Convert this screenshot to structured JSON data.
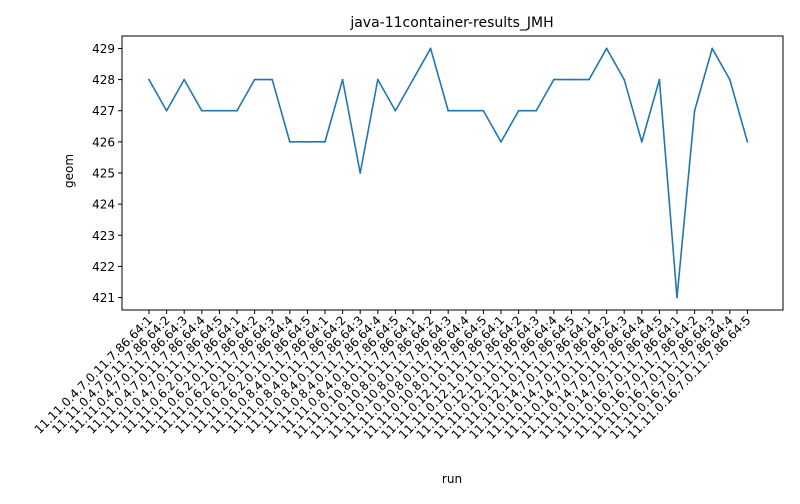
{
  "chart_data": {
    "type": "line",
    "title": "java-11container-results_JMH",
    "xlabel": "run",
    "ylabel": "geom",
    "ylim": [
      420.6,
      429.4
    ],
    "yticks": [
      421,
      422,
      423,
      424,
      425,
      426,
      427,
      428,
      429
    ],
    "grid": false,
    "categories": [
      "11.11.0.4.7.0.11.7.86.64:1",
      "11.11.0.4.7.0.11.7.86.64:2",
      "11.11.0.4.7.0.11.7.86.64:3",
      "11.11.0.4.7.0.11.7.86.64:4",
      "11.11.0.4.7.0.11.7.86.64:5",
      "11.11.0.6.2.0.11.7.86.64:1",
      "11.11.0.6.2.0.11.7.86.64:2",
      "11.11.0.6.2.0.11.7.86.64:3",
      "11.11.0.6.2.0.11.7.86.64:4",
      "11.11.0.6.2.0.11.7.86.64:5",
      "11.11.0.8.4.0.11.7.86.64:1",
      "11.11.0.8.4.0.11.7.86.64:2",
      "11.11.0.8.4.0.11.7.86.64:3",
      "11.11.0.8.4.0.11.7.86.64:4",
      "11.11.0.8.4.0.11.7.86.64:5",
      "11.11.0.10.8.0.11.7.86.64:1",
      "11.11.0.10.8.0.11.7.86.64:2",
      "11.11.0.10.8.0.11.7.86.64:3",
      "11.11.0.10.8.0.11.7.86.64:4",
      "11.11.0.10.8.0.11.7.86.64:5",
      "11.11.0.12.1.0.11.7.86.64:1",
      "11.11.0.12.1.0.11.7.86.64:2",
      "11.11.0.12.1.0.11.7.86.64:3",
      "11.11.0.12.1.0.11.7.86.64:4",
      "11.11.0.12.1.0.11.7.86.64:5",
      "11.11.0.14.7.0.11.7.86.64:1",
      "11.11.0.14.7.0.11.7.86.64:2",
      "11.11.0.14.7.0.11.7.86.64:3",
      "11.11.0.14.7.0.11.7.86.64:4",
      "11.11.0.14.7.0.11.7.86.64:5",
      "11.11.0.16.7.0.11.7.86.64:1",
      "11.11.0.16.7.0.11.7.86.64:2",
      "11.11.0.16.7.0.11.7.86.64:3",
      "11.11.0.16.7.0.11.7.86.64:4",
      "11.11.0.16.7.0.11.7.86.64:5"
    ],
    "series": [
      {
        "color": "#1f77b4",
        "values": [
          428,
          427,
          428,
          427,
          427,
          427,
          428,
          428,
          426,
          426,
          426,
          428,
          425,
          428,
          427,
          428,
          429,
          427,
          427,
          427,
          426,
          427,
          427,
          428,
          428,
          428,
          429,
          428,
          426,
          428,
          421,
          427,
          429,
          428,
          426
        ]
      }
    ]
  }
}
